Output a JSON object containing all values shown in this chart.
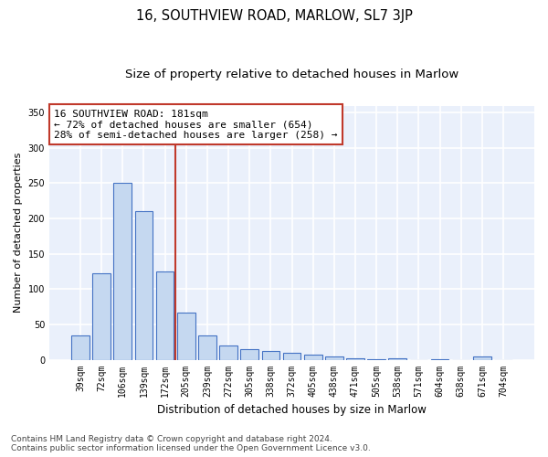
{
  "title": "16, SOUTHVIEW ROAD, MARLOW, SL7 3JP",
  "subtitle": "Size of property relative to detached houses in Marlow",
  "xlabel": "Distribution of detached houses by size in Marlow",
  "ylabel": "Number of detached properties",
  "categories": [
    "39sqm",
    "72sqm",
    "106sqm",
    "139sqm",
    "172sqm",
    "205sqm",
    "239sqm",
    "272sqm",
    "305sqm",
    "338sqm",
    "372sqm",
    "405sqm",
    "438sqm",
    "471sqm",
    "505sqm",
    "538sqm",
    "571sqm",
    "604sqm",
    "638sqm",
    "671sqm",
    "704sqm"
  ],
  "values": [
    35,
    122,
    251,
    210,
    125,
    67,
    35,
    20,
    15,
    12,
    10,
    7,
    5,
    2,
    1,
    2,
    0,
    1,
    0,
    5,
    0
  ],
  "bar_color": "#c5d8f0",
  "bar_edge_color": "#4472c4",
  "bar_edge_width": 0.8,
  "vline_color": "#c0392b",
  "annotation_text": "16 SOUTHVIEW ROAD: 181sqm\n← 72% of detached houses are smaller (654)\n28% of semi-detached houses are larger (258) →",
  "annotation_box_color": "white",
  "annotation_box_edge_color": "#c0392b",
  "ylim": [
    0,
    360
  ],
  "yticks": [
    0,
    50,
    100,
    150,
    200,
    250,
    300,
    350
  ],
  "background_color": "#eaf0fb",
  "grid_color": "white",
  "footer": "Contains HM Land Registry data © Crown copyright and database right 2024.\nContains public sector information licensed under the Open Government Licence v3.0.",
  "title_fontsize": 10.5,
  "subtitle_fontsize": 9.5,
  "xlabel_fontsize": 8.5,
  "ylabel_fontsize": 8,
  "tick_fontsize": 7,
  "annotation_fontsize": 8,
  "footer_fontsize": 6.5,
  "vline_x": 4.5
}
